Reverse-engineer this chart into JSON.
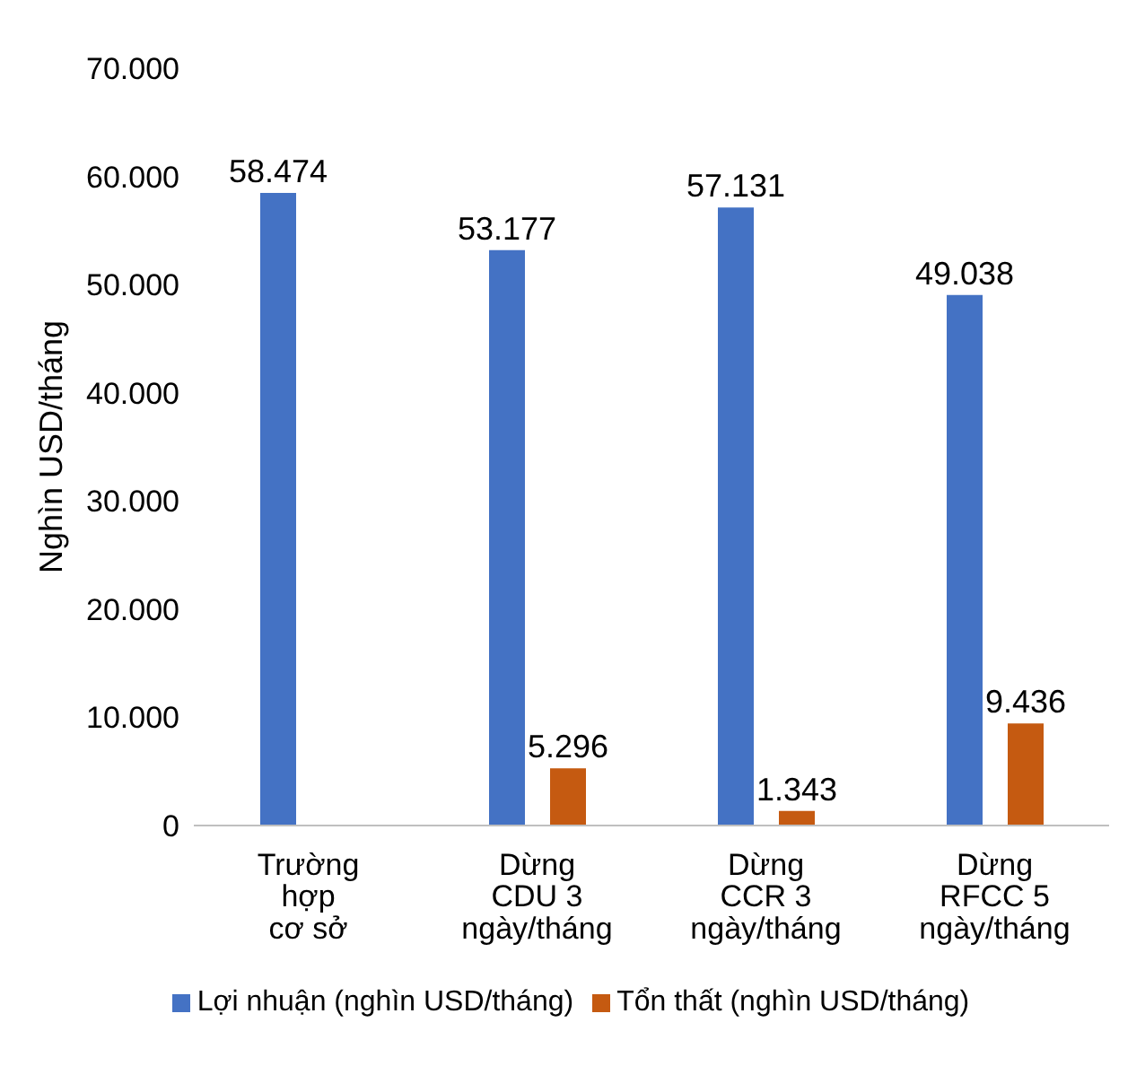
{
  "chart_data": {
    "type": "bar",
    "ylabel": "Nghìn USD/tháng",
    "categories": [
      "Trường\nhợp\ncơ sở",
      "Dừng\nCDU 3\nngày/tháng",
      "Dừng\nCCR 3\nngày/tháng",
      "Dừng\nRFCC 5\nngày/tháng"
    ],
    "series": [
      {
        "name": "Lợi nhuận (nghìn USD/tháng)",
        "color": "#4472c4",
        "values": [
          58474,
          53177,
          57131,
          49038
        ],
        "value_labels": [
          "58.474",
          "53.177",
          "57.131",
          "49.038"
        ]
      },
      {
        "name": "Tổn thất (nghìn USD/tháng)",
        "color": "#c55a11",
        "values": [
          null,
          5296,
          1343,
          9436
        ],
        "value_labels": [
          null,
          "5.296",
          "1.343",
          "9.436"
        ]
      }
    ],
    "ylim": [
      0,
      70000
    ],
    "yticks": [
      0,
      {
        "value": 10000,
        "label": "10.000"
      },
      {
        "value": 20000,
        "label": "20.000"
      },
      {
        "value": 30000,
        "label": "30.000"
      },
      {
        "value": 40000,
        "label": "40.000"
      },
      {
        "value": 50000,
        "label": "50.000"
      },
      {
        "value": 60000,
        "label": "60.000"
      },
      {
        "value": 70000,
        "label": "70.000"
      }
    ],
    "legend": "bottom",
    "grid": false
  }
}
